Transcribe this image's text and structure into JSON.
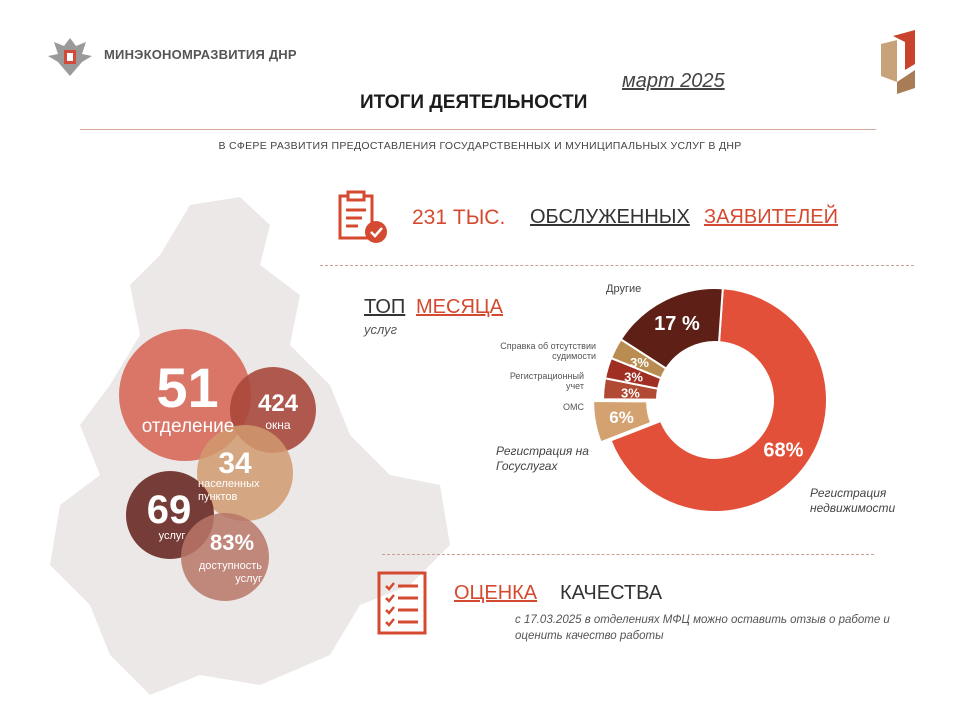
{
  "header": {
    "ministry": "МИНЭКОНОМРАЗВИТИЯ ДНР",
    "month": "март 2025",
    "title": "ИТОГИ ДЕЯТЕЛЬНОСТИ",
    "subtitle": "В СФЕРЕ РАЗВИТИЯ ПРЕДОСТАВЛЕНИЯ ГОСУДАРСТВЕННЫХ И МУНИЦИПАЛЬНЫХ УСЛУГ В ДНР"
  },
  "served": {
    "count": "231 ТЫС.",
    "word1": "ОБСЛУЖЕННЫХ",
    "word2": "ЗАЯВИТЕЛЕЙ"
  },
  "bubbles": [
    {
      "value": "51",
      "label": "отделение",
      "color": "#d7695a"
    },
    {
      "value": "424",
      "label": "окна",
      "color": "#a8483c"
    },
    {
      "value": "34",
      "label": "населенных пунктов",
      "color": "#d09a6e"
    },
    {
      "value": "69",
      "label": "услуг",
      "color": "#6b2d28"
    },
    {
      "value": "83%",
      "label": "доступность услуг",
      "color": "#b97567"
    }
  ],
  "top": {
    "word1": "ТОП",
    "word2": "МЕСЯЦА",
    "sub": "услуг"
  },
  "labels": {
    "other": "Другие",
    "criminal": "Справка об отсутствии судимости",
    "reg_account": "Регистрационный учет",
    "oms": "ОМС",
    "gosuslugi": "Регистрация на Госуслугах",
    "realty": "Регистрация недвижимости"
  },
  "chart_data": {
    "type": "pie",
    "slices": [
      {
        "name": "Регистрация недвижимости",
        "value": 68,
        "label": "68%",
        "color": "#e2503a"
      },
      {
        "name": "Регистрация на Госуслугах",
        "value": 6,
        "label": "6%",
        "color": "#d4a171"
      },
      {
        "name": "ОМС",
        "value": 3,
        "label": "3%",
        "color": "#b14a32"
      },
      {
        "name": "Регистрационный учет",
        "value": 3,
        "label": "3%",
        "color": "#a12e23"
      },
      {
        "name": "Справка об отсутствии судимости",
        "value": 3,
        "label": "3%",
        "color": "#b98d52"
      },
      {
        "name": "Другие",
        "value": 17,
        "label": "17 %",
        "color": "#5e2016"
      }
    ]
  },
  "quality": {
    "word1": "ОЦЕНКА",
    "word2": "КАЧЕСТВА",
    "text": "с 17.03.2025 в отделениях МФЦ можно оставить отзыв о работе и оценить качество работы"
  },
  "colors": {
    "accent": "#d44a30",
    "dark": "#5e2016",
    "map": "#ece8e7"
  }
}
